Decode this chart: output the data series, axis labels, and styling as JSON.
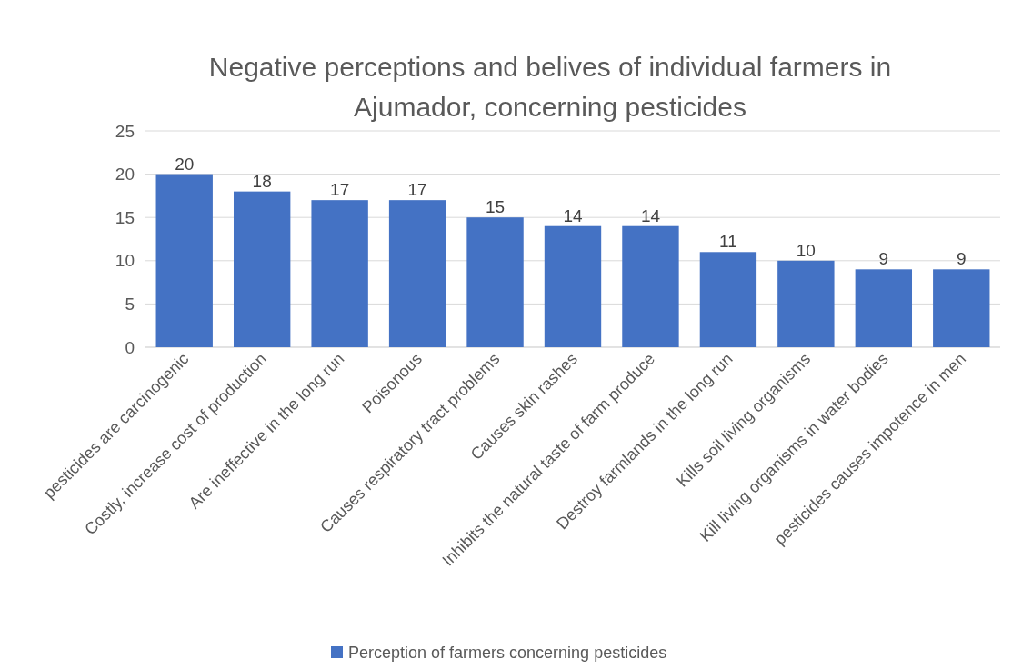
{
  "chart_data": {
    "type": "bar",
    "title": "Negative perceptions and belives of individual farmers in Ajumador, concerning pesticides",
    "categories": [
      "pesticides are carcinogenic",
      "Costly, increase cost of production",
      "Are ineffective in the long run",
      "Poisonous",
      "Causes respiratory tract problems",
      "Causes skin rashes",
      "Inhibits the natural taste of farm produce",
      "Destroy farmlands in the long run",
      "Kills soil living organisms",
      "Kill living organisms in water bodies",
      "pesticides causes impotence in men"
    ],
    "series": [
      {
        "name": "Perception of farmers concerning pesticides",
        "color": "#4472c4",
        "values": [
          20,
          18,
          17,
          17,
          15,
          14,
          14,
          11,
          10,
          9,
          9
        ]
      }
    ],
    "ylim": [
      0,
      25
    ],
    "yticks": [
      0,
      5,
      10,
      15,
      20,
      25
    ],
    "grid": "y",
    "legend": "bottom",
    "data_labels": true
  }
}
